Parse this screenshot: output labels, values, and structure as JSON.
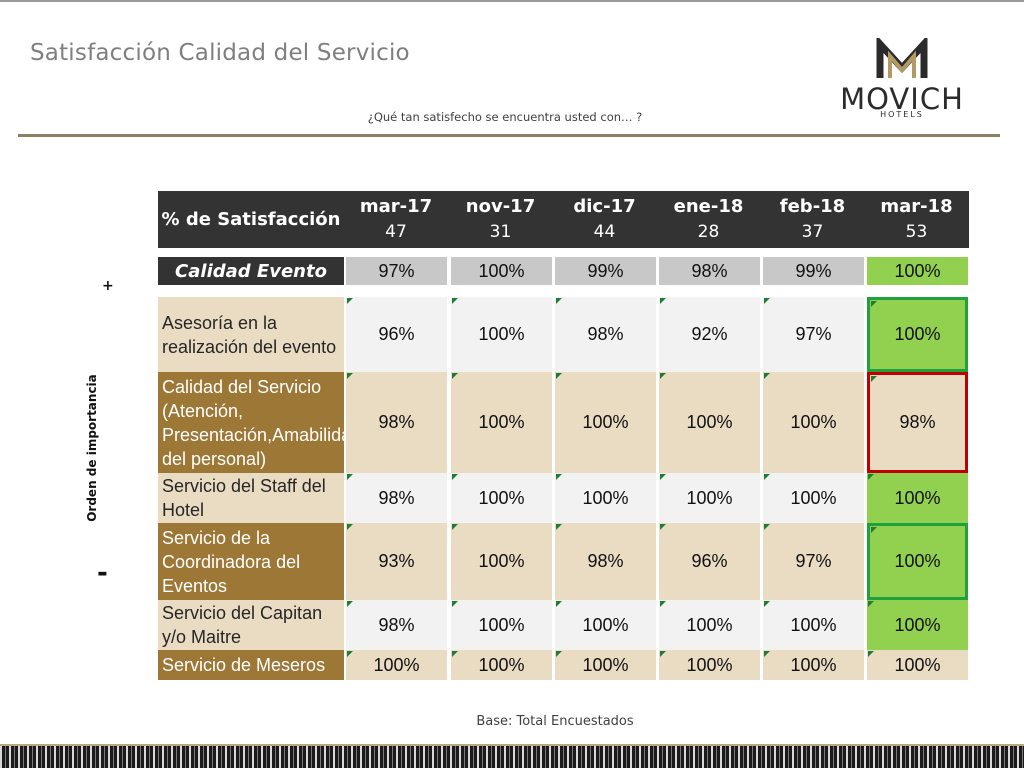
{
  "title": "Satisfacción Calidad del Servicio",
  "subtitle": "¿Qué tan satisfecho se encuentra usted con… ?",
  "logo": {
    "word": "MOVICH",
    "sub": "HOTELS"
  },
  "axis": {
    "label": "Orden de importancia",
    "plus": "+",
    "minus": "-"
  },
  "table": {
    "header_label": "% de Satisfacción",
    "columns": [
      {
        "month": "mar-17",
        "n": "47"
      },
      {
        "month": "nov-17",
        "n": "31"
      },
      {
        "month": "dic-17",
        "n": "44"
      },
      {
        "month": "ene-18",
        "n": "28"
      },
      {
        "month": "feb-18",
        "n": "37"
      },
      {
        "month": "mar-18",
        "n": "53"
      }
    ],
    "summary": {
      "label": "Calidad Evento",
      "values": [
        "97%",
        "100%",
        "99%",
        "98%",
        "99%",
        "100%"
      ]
    },
    "rows": [
      {
        "label": "Asesoría en la realización del evento",
        "values": [
          "96%",
          "100%",
          "98%",
          "92%",
          "97%",
          "100%"
        ],
        "last_status": "green-box"
      },
      {
        "label": "Calidad del Servicio (Atención, Presentación,Amabilidad del personal)",
        "values": [
          "98%",
          "100%",
          "100%",
          "100%",
          "100%",
          "98%"
        ],
        "last_status": "red-box"
      },
      {
        "label": "Servicio del Staff del Hotel",
        "values": [
          "98%",
          "100%",
          "100%",
          "100%",
          "100%",
          "100%"
        ],
        "last_status": "green"
      },
      {
        "label": "Servicio de la Coordinadora del Eventos",
        "values": [
          "93%",
          "100%",
          "98%",
          "96%",
          "97%",
          "100%"
        ],
        "last_status": "green-box"
      },
      {
        "label": "Servicio del Capitan y/o Maitre",
        "values": [
          "98%",
          "100%",
          "100%",
          "100%",
          "100%",
          "100%"
        ],
        "last_status": "green"
      },
      {
        "label": "Servicio de Meseros",
        "values": [
          "100%",
          "100%",
          "100%",
          "100%",
          "100%",
          "100%"
        ],
        "last_status": "none"
      }
    ]
  },
  "colors": {
    "header_bg": "#333333",
    "label_light": "#eadcc3",
    "label_dark": "#9c7736",
    "cell_light": "#f2f2f2",
    "cell_beige": "#eadcc3",
    "highlight_green": "#92d050",
    "summary_grey": "#c8c8c8",
    "box_green": "#21a13b",
    "box_red": "#c00000"
  },
  "footnote": "Base: Total Encuestados"
}
